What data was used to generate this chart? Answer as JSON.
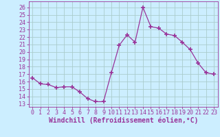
{
  "x": [
    0,
    1,
    2,
    3,
    4,
    5,
    6,
    7,
    8,
    9,
    10,
    11,
    12,
    13,
    14,
    15,
    16,
    17,
    18,
    19,
    20,
    21,
    22,
    23
  ],
  "y": [
    16.5,
    15.7,
    15.6,
    15.2,
    15.3,
    15.3,
    14.6,
    13.7,
    13.3,
    13.3,
    17.2,
    20.9,
    22.3,
    21.3,
    26.0,
    23.4,
    23.2,
    22.4,
    22.2,
    21.3,
    20.3,
    18.5,
    17.2,
    17.0
  ],
  "line_color": "#993399",
  "marker": "+",
  "marker_size": 4,
  "bg_color": "#cceeff",
  "grid_color": "#aacccc",
  "xlabel": "Windchill (Refroidissement éolien,°C)",
  "ylabel_ticks": [
    13,
    14,
    15,
    16,
    17,
    18,
    19,
    20,
    21,
    22,
    23,
    24,
    25,
    26
  ],
  "ylim": [
    12.6,
    26.8
  ],
  "xlim": [
    -0.5,
    23.5
  ],
  "xticks": [
    0,
    1,
    2,
    3,
    4,
    5,
    6,
    7,
    8,
    9,
    10,
    11,
    12,
    13,
    14,
    15,
    16,
    17,
    18,
    19,
    20,
    21,
    22,
    23
  ],
  "xlabel_fontsize": 7,
  "tick_fontsize": 6,
  "tick_color": "#993399",
  "line_width": 0.9,
  "marker_thickness": 1.2
}
